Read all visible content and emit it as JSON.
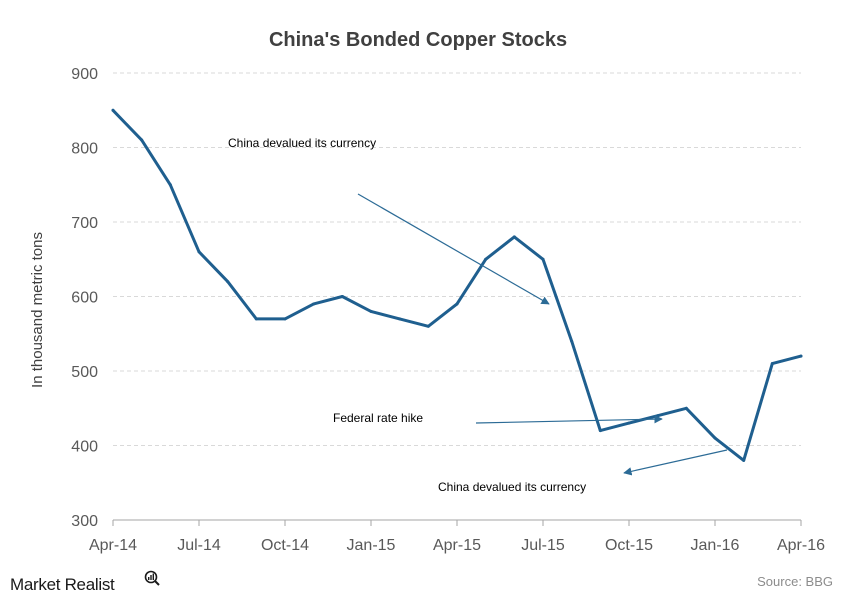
{
  "chart_data": {
    "type": "line",
    "title": "China's Bonded Copper Stocks",
    "ylabel": "In thousand metric tons",
    "xlabel": "",
    "ylim": [
      300,
      900
    ],
    "yticks": [
      "900",
      "800",
      "700",
      "600",
      "500",
      "400",
      "300"
    ],
    "xtick_labels": [
      "Apr-14",
      "Jul-14",
      "Oct-14",
      "Jan-15",
      "Apr-15",
      "Jul-15",
      "Oct-15",
      "Jan-16",
      "Apr-16"
    ],
    "grid": true,
    "series": [
      {
        "x": [
          "Apr-14",
          "May-14",
          "Jun-14",
          "Jul-14",
          "Aug-14",
          "Sep-14",
          "Oct-14",
          "Nov-14",
          "Dec-14",
          "Jan-15",
          "Feb-15",
          "Mar-15",
          "Apr-15",
          "May-15",
          "Jun-15",
          "Jul-15",
          "Aug-15",
          "Sep-15",
          "Oct-15",
          "Nov-15",
          "Dec-15",
          "Jan-16",
          "Feb-16",
          "Mar-16",
          "Apr-16"
        ],
        "values": [
          850,
          810,
          750,
          660,
          620,
          570,
          570,
          590,
          600,
          580,
          570,
          560,
          590,
          650,
          680,
          650,
          540,
          420,
          430,
          440,
          450,
          410,
          380,
          510,
          520
        ]
      }
    ],
    "annotations": [
      {
        "text": "China devalued its currency",
        "target_x": "Jul-15",
        "target_y": 590
      },
      {
        "text": "Federal rate hike",
        "target_x": "Nov-15",
        "target_y": 440
      },
      {
        "text": "China devalued its currency",
        "target_x": "Jan-16",
        "target_y": 395
      }
    ],
    "colors": {
      "line": "#1f5f8f",
      "grid": "#d9d9d9",
      "axis": "#a6a6a6",
      "annotation_arrow": "#2c6b96"
    }
  },
  "source": "Source: BBG",
  "brand": "Market Realist"
}
